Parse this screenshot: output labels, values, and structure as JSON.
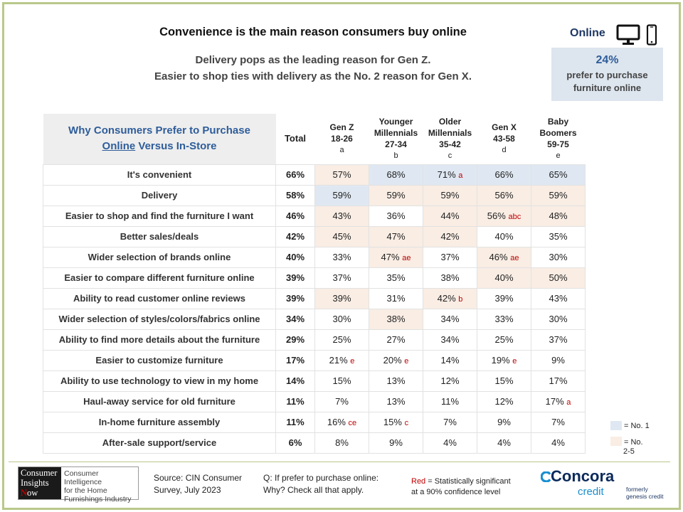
{
  "title": "Convenience is the main reason consumers buy online",
  "subtitle_line1": "Delivery pops as the leading reason for Gen Z.",
  "subtitle_line2": "Easier to shop ties with delivery as the No. 2 reason for Gen X.",
  "online": {
    "label": "Online",
    "icons": [
      "monitor-icon",
      "phone-icon"
    ],
    "stat_value": "24%",
    "stat_line1": "prefer to purchase",
    "stat_line2": "furniture online"
  },
  "table": {
    "header_label_line1": "Why Consumers Prefer to Purchase",
    "header_label_underlined": "Online",
    "header_label_rest": "Versus In-Store",
    "columns": [
      {
        "name_line1": "Total",
        "name_line2": "",
        "ages": "",
        "letter": ""
      },
      {
        "name_line1": "",
        "name_line2": "Gen Z",
        "ages": "18-26",
        "letter": "a"
      },
      {
        "name_line1": "Younger",
        "name_line2": "Millennials",
        "ages": "27-34",
        "letter": "b"
      },
      {
        "name_line1": "Older",
        "name_line2": "Millennials",
        "ages": "35-42",
        "letter": "c"
      },
      {
        "name_line1": "",
        "name_line2": "Gen X",
        "ages": "43-58",
        "letter": "d"
      },
      {
        "name_line1": "Baby",
        "name_line2": "Boomers",
        "ages": "59-75",
        "letter": "e"
      }
    ],
    "rows": [
      {
        "label": "It's convenient",
        "total": "66%",
        "cells": [
          {
            "v": "57%",
            "sig": "",
            "hl": "n2"
          },
          {
            "v": "68%",
            "sig": "",
            "hl": "n1"
          },
          {
            "v": "71%",
            "sig": "a",
            "hl": "n1"
          },
          {
            "v": "66%",
            "sig": "",
            "hl": "n1"
          },
          {
            "v": "65%",
            "sig": "",
            "hl": "n1"
          }
        ]
      },
      {
        "label": "Delivery",
        "total": "58%",
        "cells": [
          {
            "v": "59%",
            "sig": "",
            "hl": "n1"
          },
          {
            "v": "59%",
            "sig": "",
            "hl": "n2"
          },
          {
            "v": "59%",
            "sig": "",
            "hl": "n2"
          },
          {
            "v": "56%",
            "sig": "",
            "hl": "n2"
          },
          {
            "v": "59%",
            "sig": "",
            "hl": "n2"
          }
        ]
      },
      {
        "label": "Easier to shop and find the furniture I want",
        "total": "46%",
        "cells": [
          {
            "v": "43%",
            "sig": "",
            "hl": "n2"
          },
          {
            "v": "36%",
            "sig": "",
            "hl": ""
          },
          {
            "v": "44%",
            "sig": "",
            "hl": "n2"
          },
          {
            "v": "56%",
            "sig": "abc",
            "hl": "n2"
          },
          {
            "v": "48%",
            "sig": "",
            "hl": "n2"
          }
        ]
      },
      {
        "label": "Better sales/deals",
        "total": "42%",
        "cells": [
          {
            "v": "45%",
            "sig": "",
            "hl": "n2"
          },
          {
            "v": "47%",
            "sig": "",
            "hl": "n2"
          },
          {
            "v": "42%",
            "sig": "",
            "hl": "n2"
          },
          {
            "v": "40%",
            "sig": "",
            "hl": ""
          },
          {
            "v": "35%",
            "sig": "",
            "hl": ""
          }
        ]
      },
      {
        "label": "Wider selection of brands online",
        "total": "40%",
        "cells": [
          {
            "v": "33%",
            "sig": "",
            "hl": ""
          },
          {
            "v": "47%",
            "sig": "ae",
            "hl": "n2"
          },
          {
            "v": "37%",
            "sig": "",
            "hl": ""
          },
          {
            "v": "46%",
            "sig": "ae",
            "hl": "n2"
          },
          {
            "v": "30%",
            "sig": "",
            "hl": ""
          }
        ]
      },
      {
        "label": "Easier to compare different furniture online",
        "total": "39%",
        "cells": [
          {
            "v": "37%",
            "sig": "",
            "hl": ""
          },
          {
            "v": "35%",
            "sig": "",
            "hl": ""
          },
          {
            "v": "38%",
            "sig": "",
            "hl": ""
          },
          {
            "v": "40%",
            "sig": "",
            "hl": "n2"
          },
          {
            "v": "50%",
            "sig": "",
            "hl": "n2"
          }
        ]
      },
      {
        "label": "Ability to read customer online reviews",
        "total": "39%",
        "cells": [
          {
            "v": "39%",
            "sig": "",
            "hl": "n2"
          },
          {
            "v": "31%",
            "sig": "",
            "hl": ""
          },
          {
            "v": "42%",
            "sig": "b",
            "hl": "n2"
          },
          {
            "v": "39%",
            "sig": "",
            "hl": ""
          },
          {
            "v": "43%",
            "sig": "",
            "hl": ""
          }
        ]
      },
      {
        "label": "Wider selection of styles/colors/fabrics online",
        "total": "34%",
        "cells": [
          {
            "v": "30%",
            "sig": "",
            "hl": ""
          },
          {
            "v": "38%",
            "sig": "",
            "hl": "n2"
          },
          {
            "v": "34%",
            "sig": "",
            "hl": ""
          },
          {
            "v": "33%",
            "sig": "",
            "hl": ""
          },
          {
            "v": "30%",
            "sig": "",
            "hl": ""
          }
        ]
      },
      {
        "label": "Ability to find more details about the furniture",
        "total": "29%",
        "cells": [
          {
            "v": "25%",
            "sig": "",
            "hl": ""
          },
          {
            "v": "27%",
            "sig": "",
            "hl": ""
          },
          {
            "v": "34%",
            "sig": "",
            "hl": ""
          },
          {
            "v": "25%",
            "sig": "",
            "hl": ""
          },
          {
            "v": "37%",
            "sig": "",
            "hl": ""
          }
        ]
      },
      {
        "label": "Easier to customize furniture",
        "total": "17%",
        "cells": [
          {
            "v": "21%",
            "sig": "e",
            "hl": ""
          },
          {
            "v": "20%",
            "sig": "e",
            "hl": ""
          },
          {
            "v": "14%",
            "sig": "",
            "hl": ""
          },
          {
            "v": "19%",
            "sig": "e",
            "hl": ""
          },
          {
            "v": "9%",
            "sig": "",
            "hl": ""
          }
        ]
      },
      {
        "label": "Ability to use technology to view in my home",
        "total": "14%",
        "cells": [
          {
            "v": "15%",
            "sig": "",
            "hl": ""
          },
          {
            "v": "13%",
            "sig": "",
            "hl": ""
          },
          {
            "v": "12%",
            "sig": "",
            "hl": ""
          },
          {
            "v": "15%",
            "sig": "",
            "hl": ""
          },
          {
            "v": "17%",
            "sig": "",
            "hl": ""
          }
        ]
      },
      {
        "label": "Haul-away service for old furniture",
        "total": "11%",
        "cells": [
          {
            "v": "7%",
            "sig": "",
            "hl": ""
          },
          {
            "v": "13%",
            "sig": "",
            "hl": ""
          },
          {
            "v": "11%",
            "sig": "",
            "hl": ""
          },
          {
            "v": "12%",
            "sig": "",
            "hl": ""
          },
          {
            "v": "17%",
            "sig": "a",
            "hl": ""
          }
        ]
      },
      {
        "label": "In-home furniture assembly",
        "total": "11%",
        "cells": [
          {
            "v": "16%",
            "sig": "ce",
            "hl": ""
          },
          {
            "v": "15%",
            "sig": "c",
            "hl": ""
          },
          {
            "v": "7%",
            "sig": "",
            "hl": ""
          },
          {
            "v": "9%",
            "sig": "",
            "hl": ""
          },
          {
            "v": "7%",
            "sig": "",
            "hl": ""
          }
        ]
      },
      {
        "label": "After-sale support/service",
        "total": "6%",
        "cells": [
          {
            "v": "8%",
            "sig": "",
            "hl": ""
          },
          {
            "v": "9%",
            "sig": "",
            "hl": ""
          },
          {
            "v": "4%",
            "sig": "",
            "hl": ""
          },
          {
            "v": "4%",
            "sig": "",
            "hl": ""
          },
          {
            "v": "4%",
            "sig": "",
            "hl": ""
          }
        ]
      }
    ]
  },
  "legend": {
    "no1_label": "= No. 1",
    "no25_label": "= No.",
    "no25_suffix": "2-5",
    "colors": {
      "no1": "#dfe8f2",
      "no25": "#f9ede4"
    }
  },
  "footer": {
    "logo": {
      "left_line1": "Consumer",
      "left_line2": "Insights",
      "left_accent": "N",
      "left_line3_rest": "ow",
      "right_line1": "Consumer Intelligence",
      "right_line2": "for the Home",
      "right_line3": "Furnishings Industry"
    },
    "source_line1": "Source:  CIN Consumer",
    "source_line2": "Survey, July 2023",
    "question_line1": "Q: If prefer to purchase online:",
    "question_line2": "Why? Check all that apply.",
    "red_word": "Red",
    "red_note_rest": " = Statistically significant",
    "red_note_line2": "at a 90% confidence level",
    "concora_name": "Concora",
    "concora_sub": "credit",
    "formerly_line1": "formerly",
    "formerly_line2": "genesis credit"
  },
  "colors": {
    "frame": "#b9c88a",
    "accent_blue": "#2e5d9a",
    "sig_red": "#c00000",
    "concora_navy": "#0c2a5b",
    "concora_blue": "#1a8fd0"
  }
}
